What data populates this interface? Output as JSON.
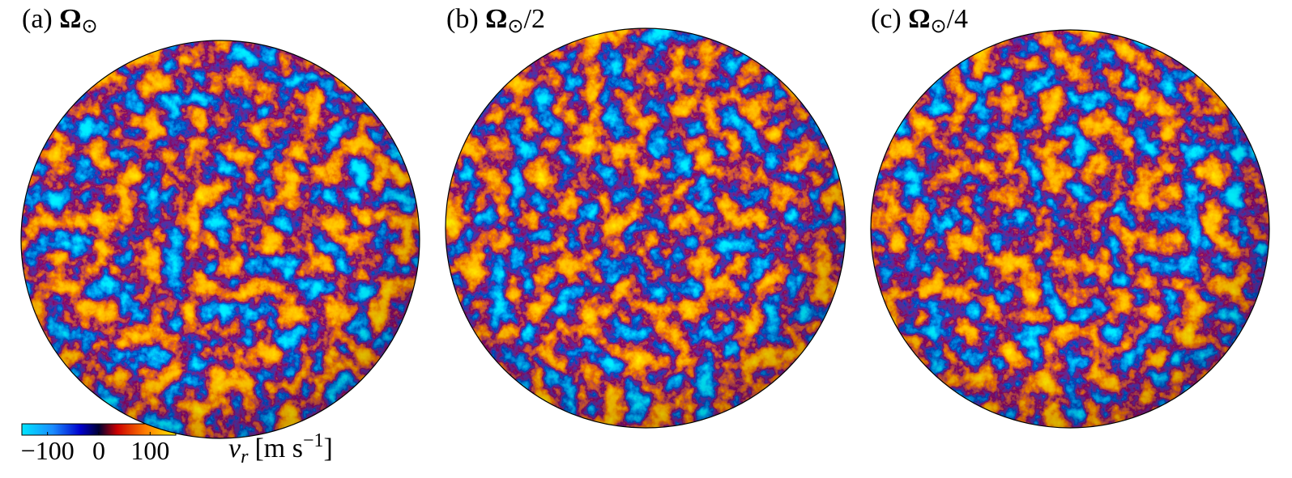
{
  "panels": [
    {
      "prefix": "(a)",
      "symbol": "Ω",
      "subscript": "⊙"
    },
    {
      "prefix": "(b)",
      "symbol": "Ω",
      "subscript": "⊙",
      "suffix": "/2"
    },
    {
      "prefix": "(c)",
      "symbol": "Ω",
      "subscript": "⊙",
      "suffix": "/4"
    }
  ],
  "colorbar": {
    "lim": [
      -150,
      150
    ],
    "ticks": [
      {
        "value": -100,
        "label": "−100"
      },
      0,
      100
    ],
    "variable": "v",
    "variable_subscript": "r",
    "unit": "[m s",
    "unit_exponent": "−1",
    "unit_close": "]"
  }
}
